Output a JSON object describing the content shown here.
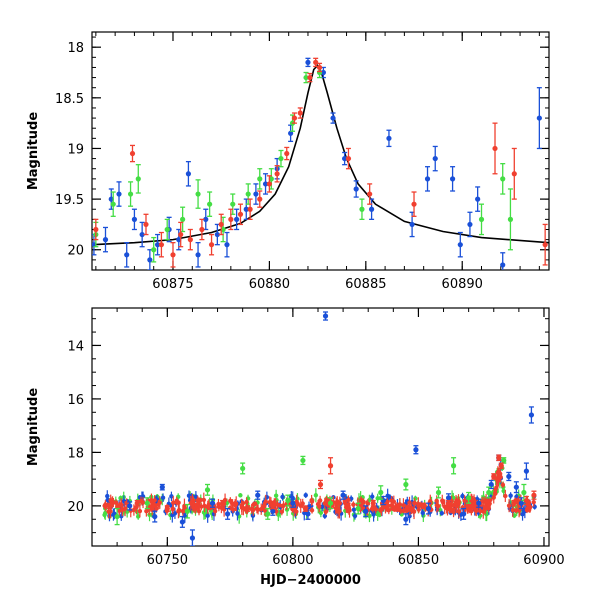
{
  "colors": {
    "g": "#44dd44",
    "r": "#f04030",
    "b": "#1a50d8",
    "model": "#000000"
  },
  "chart_data": [
    {
      "type": "scatter",
      "name": "zoom",
      "ylabel": "Magnitude",
      "xlabel": "",
      "xlim": [
        60870.8,
        60894.5
      ],
      "ylim": [
        20.2,
        17.85
      ],
      "xticks": [
        60875,
        60880,
        60885,
        60890
      ],
      "yticks": [
        18,
        18.5,
        19,
        19.5,
        20
      ],
      "ytick_labels": [
        "18",
        "18.5",
        "19",
        "19.5",
        "20"
      ],
      "series": [
        {
          "color": "b",
          "points": [
            [
              60870.9,
              19.95,
              0.1
            ],
            [
              60871.5,
              19.9,
              0.12
            ],
            [
              60871.8,
              19.5,
              0.1
            ],
            [
              60872.2,
              19.45,
              0.12
            ],
            [
              60872.6,
              20.05,
              0.12
            ],
            [
              60873.0,
              19.7,
              0.1
            ],
            [
              60873.4,
              19.85,
              0.12
            ],
            [
              60873.8,
              20.1,
              0.1
            ],
            [
              60874.2,
              19.95,
              0.1
            ],
            [
              60874.8,
              19.8,
              0.12
            ],
            [
              60875.3,
              19.9,
              0.1
            ],
            [
              60875.8,
              19.25,
              0.12
            ],
            [
              60876.3,
              20.05,
              0.12
            ],
            [
              60876.7,
              19.7,
              0.1
            ],
            [
              60877.3,
              19.85,
              0.1
            ],
            [
              60877.8,
              19.95,
              0.12
            ],
            [
              60878.3,
              19.7,
              0.1
            ],
            [
              60878.8,
              19.6,
              0.1
            ],
            [
              60879.3,
              19.45,
              0.1
            ],
            [
              60879.8,
              19.35,
              0.1
            ],
            [
              60880.4,
              19.2,
              0.1
            ],
            [
              60881.1,
              18.85,
              0.08
            ],
            [
              60882.0,
              18.15,
              0.04
            ],
            [
              60882.8,
              18.25,
              0.05
            ],
            [
              60883.3,
              18.7,
              0.05
            ],
            [
              60883.9,
              19.1,
              0.06
            ],
            [
              60884.5,
              19.4,
              0.08
            ],
            [
              60885.3,
              19.6,
              0.1
            ],
            [
              60886.2,
              18.9,
              0.08
            ],
            [
              60887.4,
              19.75,
              0.12
            ],
            [
              60888.2,
              19.3,
              0.12
            ],
            [
              60888.6,
              19.1,
              0.12
            ],
            [
              60889.5,
              19.3,
              0.12
            ],
            [
              60889.9,
              19.95,
              0.12
            ],
            [
              60890.4,
              19.75,
              0.12
            ],
            [
              60890.8,
              19.5,
              0.12
            ],
            [
              60892.1,
              20.15,
              0.12
            ],
            [
              60894.0,
              18.7,
              0.3
            ]
          ]
        },
        {
          "color": "g",
          "points": [
            [
              60871.0,
              19.85,
              0.12
            ],
            [
              60871.9,
              19.55,
              0.12
            ],
            [
              60872.8,
              19.45,
              0.12
            ],
            [
              60873.2,
              19.3,
              0.14
            ],
            [
              60874.0,
              20.0,
              0.12
            ],
            [
              60874.7,
              19.8,
              0.1
            ],
            [
              60875.5,
              19.7,
              0.12
            ],
            [
              60876.3,
              19.45,
              0.14
            ],
            [
              60876.9,
              19.55,
              0.12
            ],
            [
              60877.6,
              19.8,
              0.12
            ],
            [
              60878.1,
              19.55,
              0.1
            ],
            [
              60878.9,
              19.45,
              0.1
            ],
            [
              60879.5,
              19.3,
              0.1
            ],
            [
              60880.1,
              19.3,
              0.1
            ],
            [
              60880.6,
              19.1,
              0.08
            ],
            [
              60881.2,
              18.75,
              0.08
            ],
            [
              60881.9,
              18.3,
              0.05
            ],
            [
              60882.6,
              18.25,
              0.05
            ],
            [
              60884.8,
              19.6,
              0.1
            ],
            [
              60891.0,
              19.7,
              0.15
            ],
            [
              60892.1,
              19.3,
              0.15
            ],
            [
              60892.5,
              19.7,
              0.3
            ]
          ]
        },
        {
          "color": "r",
          "points": [
            [
              60871.0,
              19.8,
              0.1
            ],
            [
              60872.9,
              19.05,
              0.08
            ],
            [
              60873.6,
              19.75,
              0.1
            ],
            [
              60874.4,
              19.95,
              0.12
            ],
            [
              60875.0,
              20.05,
              0.12
            ],
            [
              60875.4,
              19.85,
              0.12
            ],
            [
              60875.9,
              19.9,
              0.1
            ],
            [
              60876.5,
              19.8,
              0.1
            ],
            [
              60877.0,
              19.95,
              0.1
            ],
            [
              60877.5,
              19.75,
              0.1
            ],
            [
              60878.0,
              19.7,
              0.1
            ],
            [
              60878.5,
              19.65,
              0.1
            ],
            [
              60879.0,
              19.6,
              0.1
            ],
            [
              60879.5,
              19.5,
              0.08
            ],
            [
              60880.0,
              19.35,
              0.08
            ],
            [
              60880.4,
              19.25,
              0.08
            ],
            [
              60880.9,
              19.05,
              0.06
            ],
            [
              60881.3,
              18.7,
              0.05
            ],
            [
              60881.6,
              18.65,
              0.05
            ],
            [
              60882.1,
              18.3,
              0.04
            ],
            [
              60882.4,
              18.15,
              0.04
            ],
            [
              60882.6,
              18.2,
              0.04
            ],
            [
              60884.1,
              19.1,
              0.1
            ],
            [
              60885.2,
              19.45,
              0.1
            ],
            [
              60887.5,
              19.55,
              0.12
            ],
            [
              60891.7,
              19.0,
              0.25
            ],
            [
              60892.7,
              19.25,
              0.25
            ],
            [
              60894.3,
              19.95,
              0.2
            ]
          ]
        }
      ],
      "model": [
        [
          60870.8,
          19.95
        ],
        [
          60873,
          19.93
        ],
        [
          60875,
          19.9
        ],
        [
          60877,
          19.83
        ],
        [
          60878.5,
          19.74
        ],
        [
          60879.5,
          19.62
        ],
        [
          60880.3,
          19.45
        ],
        [
          60881,
          19.18
        ],
        [
          60881.6,
          18.8
        ],
        [
          60882.0,
          18.45
        ],
        [
          60882.3,
          18.22
        ],
        [
          60882.5,
          18.18
        ],
        [
          60882.7,
          18.25
        ],
        [
          60883.0,
          18.45
        ],
        [
          60883.5,
          18.8
        ],
        [
          60884.0,
          19.1
        ],
        [
          60884.6,
          19.35
        ],
        [
          60885.5,
          19.55
        ],
        [
          60887,
          19.72
        ],
        [
          60889,
          19.82
        ],
        [
          60891,
          19.88
        ],
        [
          60894.5,
          19.93
        ]
      ]
    },
    {
      "type": "scatter",
      "name": "full",
      "ylabel": "Magnitude",
      "xlabel": "HJD−2400000",
      "xlim": [
        60720,
        60902
      ],
      "ylim": [
        21.5,
        12.6
      ],
      "xticks": [
        60750,
        60800,
        60850,
        60900
      ],
      "yticks": [
        14,
        16,
        18,
        20
      ],
      "ytick_labels": [
        "14",
        "16",
        "18",
        "20"
      ],
      "series": [
        {
          "color": "b",
          "points": [
            [
              60735,
              20.0,
              0.15
            ],
            [
              60745,
              20.4,
              0.2
            ],
            [
              60748,
              19.3,
              0.1
            ],
            [
              60756,
              20.6,
              0.2
            ],
            [
              60760,
              21.2,
              0.3
            ],
            [
              60768,
              19.9,
              0.15
            ],
            [
              60774,
              20.3,
              0.2
            ],
            [
              60786,
              19.6,
              0.15
            ],
            [
              60792,
              20.2,
              0.15
            ],
            [
              60800,
              19.9,
              0.15
            ],
            [
              60806,
              20.3,
              0.2
            ],
            [
              60813,
              12.9,
              0.15
            ],
            [
              60820,
              19.6,
              0.15
            ],
            [
              60829,
              20.2,
              0.2
            ],
            [
              60836,
              19.8,
              0.15
            ],
            [
              60845,
              20.5,
              0.2
            ],
            [
              60849,
              17.9,
              0.15
            ],
            [
              60854,
              20.1,
              0.2
            ],
            [
              60862,
              19.7,
              0.15
            ],
            [
              60868,
              20.3,
              0.2
            ],
            [
              60874,
              19.9,
              0.15
            ],
            [
              60879,
              19.2,
              0.15
            ],
            [
              60882,
              18.2,
              0.1
            ],
            [
              60886,
              18.9,
              0.15
            ],
            [
              60889,
              19.3,
              0.2
            ],
            [
              60891,
              19.9,
              0.2
            ],
            [
              60893,
              18.7,
              0.3
            ],
            [
              60895,
              16.6,
              0.3
            ]
          ]
        },
        {
          "color": "g",
          "points": [
            [
              60730,
              20.4,
              0.3
            ],
            [
              60742,
              19.9,
              0.2
            ],
            [
              60758,
              20.2,
              0.25
            ],
            [
              60766,
              19.4,
              0.2
            ],
            [
              60780,
              18.6,
              0.2
            ],
            [
              60790,
              20.3,
              0.2
            ],
            [
              60798,
              19.8,
              0.2
            ],
            [
              60804,
              18.3,
              0.15
            ],
            [
              60815,
              19.9,
              0.2
            ],
            [
              60826,
              20.1,
              0.2
            ],
            [
              60835,
              19.5,
              0.25
            ],
            [
              60845,
              19.2,
              0.2
            ],
            [
              60858,
              19.5,
              0.2
            ],
            [
              60864,
              18.5,
              0.3
            ],
            [
              60870,
              19.7,
              0.2
            ],
            [
              60878,
              19.5,
              0.2
            ],
            [
              60884,
              18.3,
              0.1
            ],
            [
              60892,
              19.5,
              0.3
            ]
          ]
        },
        {
          "color": "r",
          "points": [
            [
              60727,
              20.0,
              0.1
            ],
            [
              60738,
              19.9,
              0.1
            ],
            [
              60750,
              20.1,
              0.1
            ],
            [
              60762,
              20.0,
              0.1
            ],
            [
              60772,
              19.9,
              0.1
            ],
            [
              60782,
              20.1,
              0.1
            ],
            [
              60792,
              20.0,
              0.1
            ],
            [
              60805,
              20.1,
              0.1
            ],
            [
              60811,
              19.2,
              0.15
            ],
            [
              60815,
              18.5,
              0.3
            ],
            [
              60822,
              20.0,
              0.1
            ],
            [
              60832,
              19.9,
              0.1
            ],
            [
              60842,
              20.1,
              0.1
            ],
            [
              60852,
              20.0,
              0.1
            ],
            [
              60862,
              19.9,
              0.1
            ],
            [
              60872,
              20.0,
              0.1
            ],
            [
              60880,
              18.9,
              0.1
            ],
            [
              60882,
              18.2,
              0.1
            ],
            [
              60883,
              18.5,
              0.1
            ],
            [
              60888,
              19.9,
              0.1
            ],
            [
              60893,
              19.8,
              0.15
            ],
            [
              60896,
              19.6,
              0.15
            ]
          ]
        }
      ]
    }
  ]
}
